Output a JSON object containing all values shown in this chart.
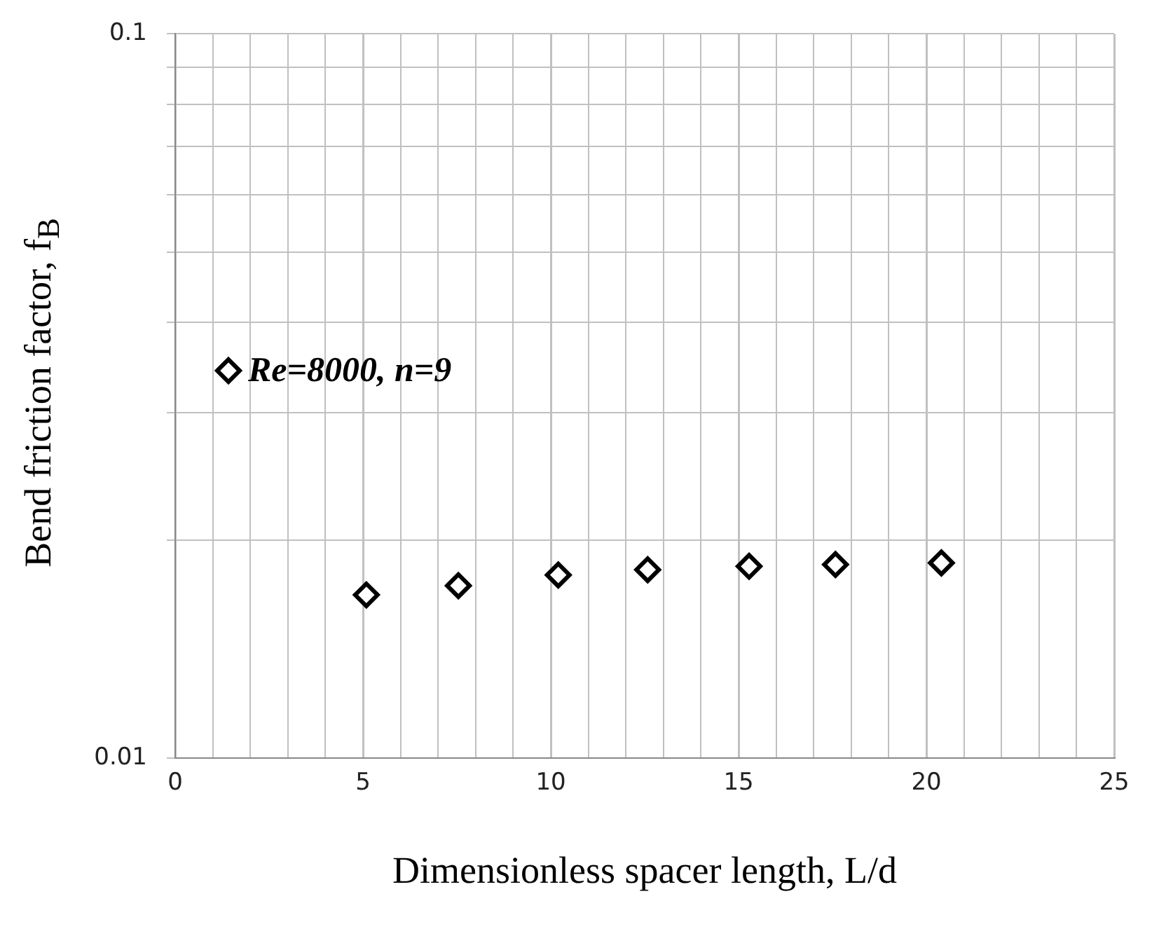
{
  "chart_data": {
    "type": "scatter",
    "xlabel": "Dimensionless spacer length, L/d",
    "ylabel": "Bend friction factor, f$_{B}$",
    "x": [
      5.09,
      7.54,
      10.2,
      12.58,
      15.28,
      17.58,
      20.4
    ],
    "series": [
      {
        "name": "Re=8000, n=9",
        "color": "#000000",
        "values": [
          0.0168,
          0.0173,
          0.0179,
          0.0182,
          0.0184,
          0.0185,
          0.0186
        ]
      }
    ],
    "xlim": [
      0,
      25
    ],
    "xticks": [
      0,
      {
        "value": 1,
        "label": null
      },
      {
        "value": 2,
        "label": null
      },
      {
        "value": 3,
        "label": null
      },
      {
        "value": 4,
        "label": null
      },
      5,
      {
        "value": 6,
        "label": null
      },
      {
        "value": 7,
        "label": null
      },
      {
        "value": 8,
        "label": null
      },
      {
        "value": 9,
        "label": null
      },
      10,
      {
        "value": 11,
        "label": null
      },
      {
        "value": 12,
        "label": null
      },
      {
        "value": 13,
        "label": null
      },
      {
        "value": 14,
        "label": null
      },
      15,
      {
        "value": 16,
        "label": null
      },
      {
        "value": 17,
        "label": null
      },
      {
        "value": 18,
        "label": null
      },
      {
        "value": 19,
        "label": null
      },
      20,
      {
        "value": 21,
        "label": null
      },
      {
        "value": 22,
        "label": null
      },
      {
        "value": 23,
        "label": null
      },
      {
        "value": 24,
        "label": null
      },
      25
    ],
    "ylim": [
      0.01,
      0.1
    ],
    "yticks": [
      0.01,
      {
        "value": 0.02,
        "label": null
      },
      {
        "value": 0.03,
        "label": null
      },
      {
        "value": 0.04,
        "label": null
      },
      {
        "value": 0.05,
        "label": null
      },
      {
        "value": 0.06,
        "label": null
      },
      {
        "value": 0.07,
        "label": null
      },
      {
        "value": 0.08,
        "label": null
      },
      {
        "value": 0.09,
        "label": null
      },
      0.1
    ],
    "log": "y",
    "grid": true,
    "legend": "left",
    "marker": "diamond"
  }
}
